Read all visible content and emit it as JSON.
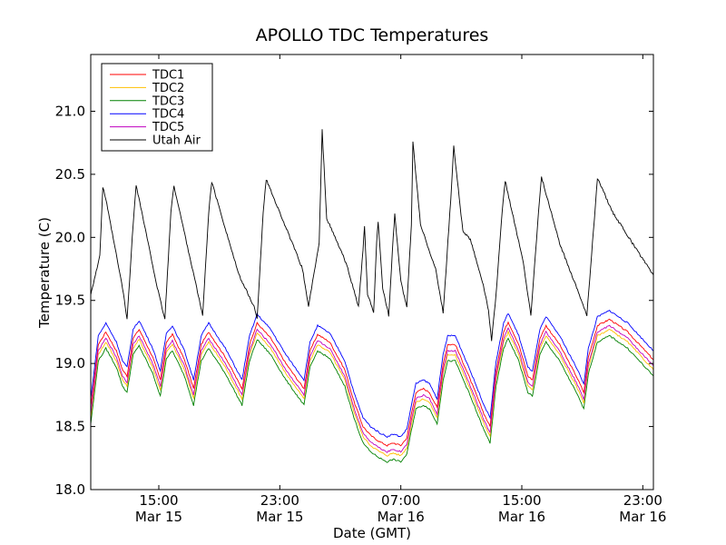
{
  "chart_data": {
    "type": "line",
    "title": "APOLLO TDC Temperatures",
    "xlabel": "Date (GMT)",
    "ylabel": "Temperature (C)",
    "ylim": [
      18.0,
      21.45
    ],
    "xlim_hours": [
      10.5,
      47.7
    ],
    "yticks": [
      18.0,
      18.5,
      19.0,
      19.5,
      20.0,
      20.5,
      21.0
    ],
    "ytick_labels": [
      "18.0",
      "18.5",
      "19.0",
      "19.5",
      "20.0",
      "20.5",
      "21.0"
    ],
    "xticks": [
      {
        "hour": 15,
        "time": "15:00",
        "date": "Mar 15"
      },
      {
        "hour": 23,
        "time": "23:00",
        "date": "Mar 15"
      },
      {
        "hour": 31,
        "time": "07:00",
        "date": "Mar 16"
      },
      {
        "hour": 39,
        "time": "15:00",
        "date": "Mar 16"
      },
      {
        "hour": 47,
        "time": "23:00",
        "date": "Mar 16"
      }
    ],
    "legend_position": "top-left",
    "series": [
      {
        "name": "TDC1",
        "color": "#ff0000",
        "offset": 0.05
      },
      {
        "name": "TDC2",
        "color": "#ffbf00",
        "offset": -0.03
      },
      {
        "name": "TDC3",
        "color": "#008000",
        "offset": -0.08
      },
      {
        "name": "TDC4",
        "color": "#0000ff",
        "offset": 0.12
      },
      {
        "name": "TDC5",
        "color": "#bf00bf",
        "offset": 0.0
      },
      {
        "name": "Utah Air",
        "color": "#000000",
        "offset": 0.0
      }
    ],
    "air_points": [
      [
        10.5,
        19.55
      ],
      [
        11.1,
        19.85
      ],
      [
        11.3,
        20.4
      ],
      [
        11.5,
        20.3
      ],
      [
        12.6,
        19.6
      ],
      [
        12.9,
        19.35
      ],
      [
        13.3,
        20.1
      ],
      [
        13.5,
        20.42
      ],
      [
        14.9,
        19.6
      ],
      [
        15.4,
        19.35
      ],
      [
        15.8,
        20.2
      ],
      [
        16.0,
        20.41
      ],
      [
        17.5,
        19.6
      ],
      [
        17.9,
        19.38
      ],
      [
        18.3,
        20.2
      ],
      [
        18.5,
        20.44
      ],
      [
        20.3,
        19.7
      ],
      [
        21.3,
        19.45
      ],
      [
        21.5,
        19.35
      ],
      [
        21.9,
        20.2
      ],
      [
        22.1,
        20.46
      ],
      [
        23.5,
        20.05
      ],
      [
        24.5,
        19.75
      ],
      [
        24.9,
        19.45
      ],
      [
        25.1,
        19.6
      ],
      [
        25.6,
        19.95
      ],
      [
        25.8,
        20.85
      ],
      [
        26.1,
        20.15
      ],
      [
        27.2,
        19.85
      ],
      [
        27.5,
        19.75
      ],
      [
        28.2,
        19.45
      ],
      [
        28.5,
        19.9
      ],
      [
        28.6,
        20.08
      ],
      [
        28.8,
        19.55
      ],
      [
        29.2,
        19.4
      ],
      [
        29.4,
        19.95
      ],
      [
        29.5,
        20.12
      ],
      [
        29.8,
        19.6
      ],
      [
        30.2,
        19.38
      ],
      [
        30.5,
        20.0
      ],
      [
        30.6,
        20.18
      ],
      [
        31.0,
        19.65
      ],
      [
        31.4,
        19.45
      ],
      [
        31.7,
        20.1
      ],
      [
        31.8,
        20.76
      ],
      [
        32.3,
        20.1
      ],
      [
        33.3,
        19.75
      ],
      [
        33.8,
        19.4
      ],
      [
        34.3,
        20.3
      ],
      [
        34.5,
        20.72
      ],
      [
        35.1,
        20.05
      ],
      [
        35.6,
        19.98
      ],
      [
        36.4,
        19.65
      ],
      [
        36.8,
        19.42
      ],
      [
        37.0,
        19.18
      ],
      [
        37.3,
        19.55
      ],
      [
        37.7,
        20.2
      ],
      [
        37.9,
        20.45
      ],
      [
        39.1,
        19.8
      ],
      [
        39.6,
        19.38
      ],
      [
        40.1,
        20.2
      ],
      [
        40.3,
        20.48
      ],
      [
        41.5,
        19.95
      ],
      [
        42.8,
        19.55
      ],
      [
        43.3,
        19.38
      ],
      [
        43.8,
        20.15
      ],
      [
        44.0,
        20.47
      ],
      [
        45.0,
        20.2
      ],
      [
        46.6,
        19.9
      ],
      [
        47.7,
        19.7
      ]
    ],
    "tdc_points": [
      [
        10.5,
        18.6
      ],
      [
        11.0,
        19.1
      ],
      [
        11.5,
        19.2
      ],
      [
        12.2,
        19.05
      ],
      [
        12.6,
        18.9
      ],
      [
        12.9,
        18.85
      ],
      [
        13.3,
        19.15
      ],
      [
        13.7,
        19.22
      ],
      [
        14.6,
        19.0
      ],
      [
        15.1,
        18.82
      ],
      [
        15.5,
        19.12
      ],
      [
        15.9,
        19.18
      ],
      [
        16.7,
        18.98
      ],
      [
        17.3,
        18.75
      ],
      [
        17.8,
        19.1
      ],
      [
        18.3,
        19.2
      ],
      [
        19.4,
        19.0
      ],
      [
        20.5,
        18.75
      ],
      [
        21.0,
        19.1
      ],
      [
        21.5,
        19.27
      ],
      [
        22.4,
        19.15
      ],
      [
        23.4,
        18.95
      ],
      [
        24.6,
        18.75
      ],
      [
        25.0,
        19.05
      ],
      [
        25.5,
        19.18
      ],
      [
        26.3,
        19.12
      ],
      [
        27.3,
        18.9
      ],
      [
        27.9,
        18.65
      ],
      [
        28.5,
        18.45
      ],
      [
        29.0,
        18.38
      ],
      [
        29.6,
        18.33
      ],
      [
        30.1,
        18.3
      ],
      [
        30.5,
        18.32
      ],
      [
        31.0,
        18.3
      ],
      [
        31.4,
        18.36
      ],
      [
        31.7,
        18.55
      ],
      [
        32.0,
        18.72
      ],
      [
        32.5,
        18.75
      ],
      [
        32.9,
        18.72
      ],
      [
        33.4,
        18.6
      ],
      [
        33.8,
        18.95
      ],
      [
        34.1,
        19.1
      ],
      [
        34.6,
        19.1
      ],
      [
        35.5,
        18.85
      ],
      [
        36.5,
        18.55
      ],
      [
        36.9,
        18.45
      ],
      [
        37.3,
        18.9
      ],
      [
        37.8,
        19.2
      ],
      [
        38.1,
        19.28
      ],
      [
        38.8,
        19.1
      ],
      [
        39.4,
        18.85
      ],
      [
        39.7,
        18.82
      ],
      [
        40.2,
        19.15
      ],
      [
        40.6,
        19.25
      ],
      [
        41.5,
        19.1
      ],
      [
        42.6,
        18.85
      ],
      [
        43.1,
        18.72
      ],
      [
        43.4,
        19.0
      ],
      [
        44.0,
        19.25
      ],
      [
        44.8,
        19.3
      ],
      [
        46.0,
        19.2
      ],
      [
        47.7,
        18.98
      ]
    ]
  }
}
